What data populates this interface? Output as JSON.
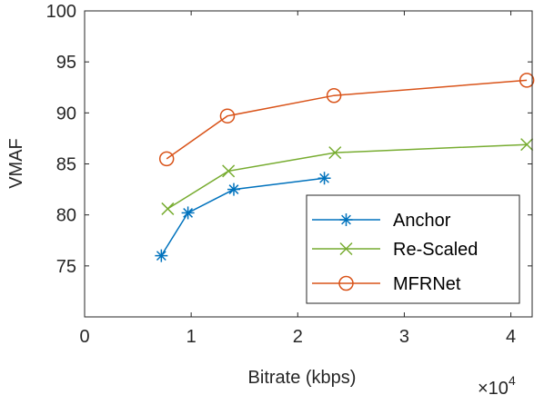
{
  "chart_data": {
    "type": "line",
    "xlabel": "Bitrate (kbps)",
    "ylabel": "VMAF",
    "x_exponent_label": {
      "base": "×10",
      "exp": "4"
    },
    "xlim": [
      0,
      42000
    ],
    "ylim": [
      70,
      100
    ],
    "x_ticks": [
      0,
      10000,
      20000,
      30000,
      40000
    ],
    "x_tick_labels": [
      "0",
      "1",
      "2",
      "3",
      "4"
    ],
    "y_ticks": [
      75,
      80,
      85,
      90,
      95,
      100
    ],
    "y_tick_labels": [
      "75",
      "80",
      "85",
      "90",
      "95",
      "100"
    ],
    "grid": false,
    "legend_position": "bottom-right",
    "series": [
      {
        "name": "Anchor",
        "color": "#0072BD",
        "marker": "asterisk",
        "x": [
          7200,
          9700,
          14000,
          22500
        ],
        "y": [
          76.0,
          80.2,
          82.5,
          83.6
        ]
      },
      {
        "name": "Re-Scaled",
        "color": "#77AC30",
        "marker": "cross",
        "x": [
          7800,
          13500,
          23500,
          41500
        ],
        "y": [
          80.6,
          84.3,
          86.1,
          86.9
        ]
      },
      {
        "name": "MFRNet",
        "color": "#D95319",
        "marker": "circle",
        "x": [
          7700,
          13400,
          23400,
          41500
        ],
        "y": [
          85.5,
          89.7,
          91.7,
          93.2
        ]
      }
    ]
  }
}
